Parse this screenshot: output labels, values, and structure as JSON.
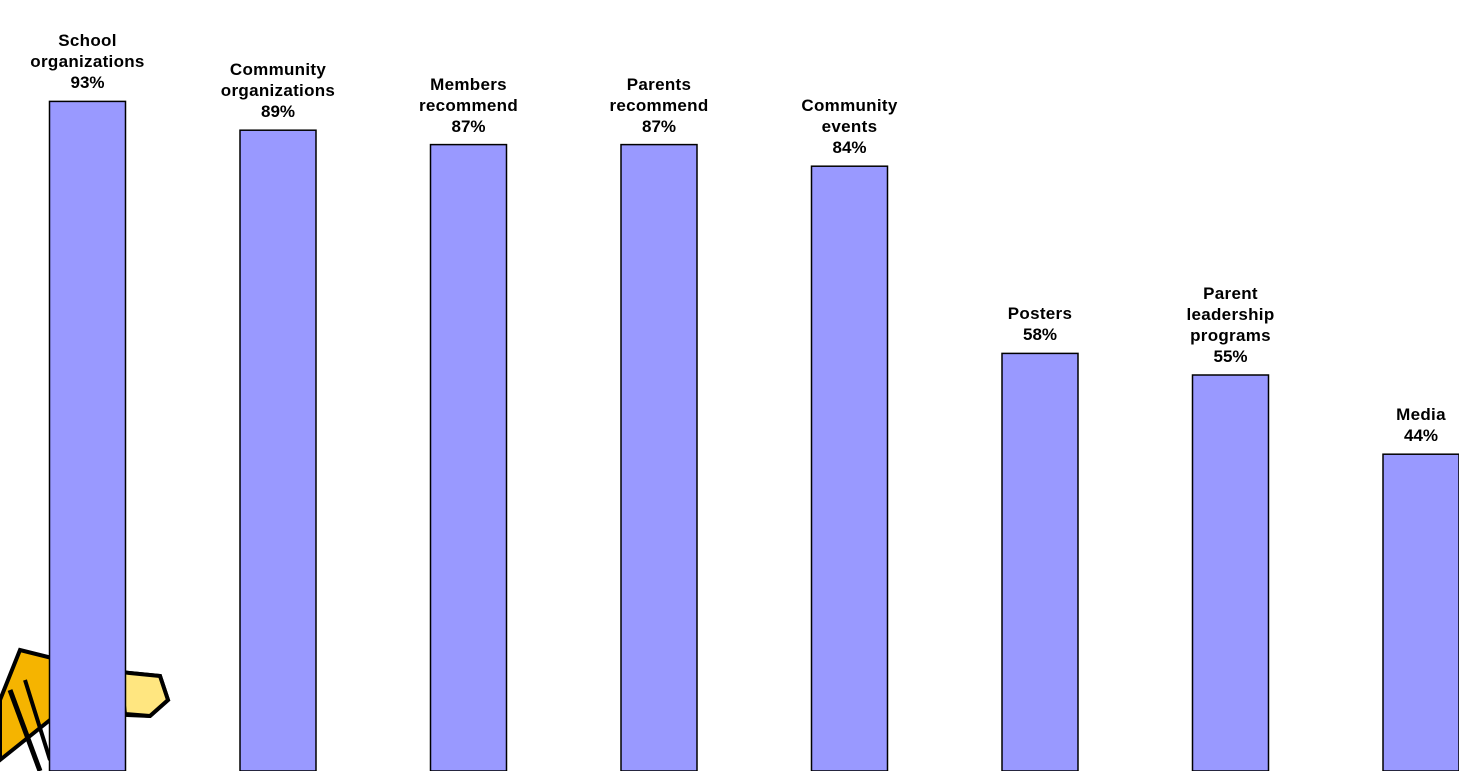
{
  "chart_data": {
    "type": "bar",
    "categories": [
      "School\norganizations",
      "Community\norganizations",
      "Members\nrecommend",
      "Parents\nrecommend",
      "Community\nevents",
      "Posters",
      "Parent\nleadership\nprograms",
      "Media"
    ],
    "values": [
      93,
      89,
      87,
      87,
      84,
      58,
      55,
      44
    ],
    "value_labels": [
      "93%",
      "89%",
      "87%",
      "87%",
      "84%",
      "58%",
      "55%",
      "44%"
    ],
    "color": "#9999ff",
    "ylim": [
      0,
      100
    ]
  }
}
